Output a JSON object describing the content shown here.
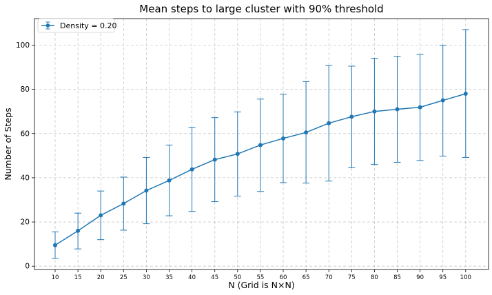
{
  "chart_data": {
    "type": "line",
    "title": "Mean steps to large cluster with 90% threshold",
    "xlabel": "N (Grid is N×N)",
    "ylabel": "Number of Steps",
    "ylim": [
      -1.5,
      112
    ],
    "yticks": [
      0,
      20,
      40,
      60,
      80,
      100
    ],
    "grid": true,
    "legend_position": "top-left",
    "categories": [
      "10",
      "15",
      "20",
      "25",
      "30",
      "35",
      "40",
      "45",
      "50",
      "55",
      "60",
      "65",
      "70",
      "75",
      "80",
      "85",
      "90",
      "95",
      "100"
    ],
    "series": [
      {
        "name": "Density = 0.20",
        "color": "#1f77b4",
        "values": [
          9.5,
          16,
          23,
          28.3,
          34.2,
          38.8,
          43.8,
          48.2,
          50.8,
          54.8,
          57.8,
          60.5,
          64.7,
          67.6,
          70,
          71,
          71.9,
          75,
          78
        ],
        "error_low": [
          3.5,
          7.8,
          12,
          16.3,
          19.2,
          22.8,
          24.8,
          29.2,
          31.7,
          33.8,
          37.8,
          37.6,
          38.5,
          44.5,
          46,
          47,
          47.8,
          49.8,
          49.2
        ],
        "error_high": [
          15.5,
          24,
          34,
          40.3,
          49.2,
          54.8,
          62.8,
          67.2,
          69.8,
          75.6,
          77.8,
          83.5,
          90.8,
          90.5,
          94,
          95,
          95.8,
          100,
          107
        ]
      }
    ]
  }
}
